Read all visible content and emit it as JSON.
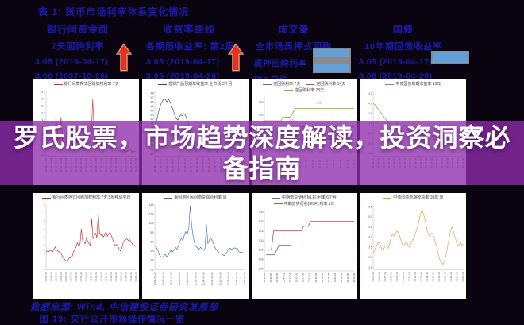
{
  "colors": {
    "navy": "#1b1bb0",
    "banner_purple": "rgba(142,45,172,0.78)",
    "bar_blue": "#64a0d8",
    "arrow_red": "#e63022",
    "arrow_edge": "#d8a078"
  },
  "banner": {
    "line1": "罗氏股票，市场趋势深度解读，投资洞察必",
    "line2": "备指南"
  },
  "header": {
    "title": "表 1: 货币市场利率体系变化情况",
    "groups": [
      {
        "name": "银行间资金面",
        "sub": "7天回购利率",
        "val1": "3.05 (2019-04-17)",
        "val2": "3.06 (2007-10-26)"
      },
      {
        "name": "收益率曲线",
        "sub": "各期限收益率: 第2周",
        "val1": "3.05 (2019-04-17)",
        "val2": "3.05 (2019-04-26)"
      },
      {
        "name": "成交量",
        "sub": "全市场质押式回购",
        "val1": "质押回购利率",
        "val2": "较7 日均."
      },
      {
        "name": "国债",
        "sub": "10年期国债收益率",
        "val1": "3.05 (2019-04-17)",
        "val2": "3.06 (2019-04-26)"
      }
    ]
  },
  "footer": {
    "line1": "数据来源: Wind, 中信建投证券研究发展部",
    "line2": "图 19:  央行公开市场操作情况一览"
  },
  "chart_data": [
    {
      "type": "line",
      "ylim": [
        1.95,
        6.55
      ],
      "y_ticks": [
        "6.5",
        "6.0",
        "5.5",
        "5.0",
        "4.5",
        "4.0",
        "3.5",
        "3.0",
        "2.5",
        "2.0"
      ],
      "x_labels": [
        "2018-01-24",
        "2018-02-24",
        "2018-03-24",
        "2018-04-24",
        "2018-05-24",
        "2018-06-24",
        "2018-07-24",
        "2018-08-24",
        "2018-09-24",
        "2018-10-24",
        "2018-11-24",
        "2018-12-24",
        "2019-01-24",
        "2019-02-24",
        "2019-03-24",
        "2019-04-24",
        "2019-05-24",
        "2019-06-24",
        "2019-07-24"
      ],
      "series": [
        {
          "name": "银行间质押式回购加权利率:7天",
          "color": "#d43030",
          "w": 0.6,
          "values": [
            3.0,
            2.9,
            3.1,
            3.0,
            2.95,
            3.05,
            4.6,
            3.2,
            2.9,
            4.7,
            3.0,
            2.85,
            2.9,
            3.6,
            3.0,
            2.9,
            2.8,
            2.85,
            2.9,
            3.4,
            2.8,
            2.75,
            2.9,
            3.1,
            2.85,
            2.8,
            2.9,
            3.0,
            6.0,
            3.1,
            2.9,
            2.8,
            2.7,
            2.75,
            2.9,
            2.6,
            2.5,
            2.55,
            2.6,
            2.5,
            2.45,
            2.5,
            2.6,
            2.4,
            2.3,
            2.35,
            2.4,
            2.3,
            2.25,
            2.3,
            2.4,
            2.35,
            2.2,
            2.3,
            2.25
          ]
        }
      ]
    },
    {
      "type": "line",
      "ylim": [
        3.35,
        4.85
      ],
      "y_ticks": [
        "4.8",
        "4.7",
        "4.6",
        "4.5",
        "4.4",
        "4.3",
        "4.2",
        "4.1",
        "4.0",
        "3.9",
        "3.8",
        "3.7",
        "3.6",
        "3.5",
        "3.4"
      ],
      "x_labels": [
        "2018-01-07",
        "2018-02-07",
        "2018-03-07",
        "2018-04-07",
        "2018-05-07",
        "2018-06-07",
        "2018-07-07",
        "2018-08-07",
        "2018-09-07",
        "2018-10-07",
        "2018-11-07",
        "2018-12-07",
        "2019-01-07",
        "2019-02-07",
        "2019-03-07",
        "2019-04-07"
      ],
      "series": [
        {
          "name": "理财产品预期年收益率:全市场:3个月",
          "color": "#27408f",
          "w": 0.6,
          "values": [
            4.05,
            4.15,
            4.3,
            4.45,
            4.55,
            4.62,
            4.68,
            4.65,
            4.6,
            4.66,
            4.6,
            4.5,
            4.42,
            4.3,
            4.22,
            4.18,
            4.25,
            4.3,
            4.28,
            4.33,
            4.3,
            4.2,
            4.1,
            3.95,
            3.75,
            3.6,
            3.5,
            3.45,
            3.55,
            3.6,
            3.52,
            3.48,
            3.55,
            3.6,
            3.58,
            3.5,
            3.45,
            3.52,
            3.58,
            3.55,
            3.48,
            3.44,
            3.5,
            3.55,
            3.5,
            3.46,
            3.52,
            3.56,
            3.5,
            3.45,
            3.42,
            3.5,
            3.53,
            3.48,
            3.44,
            3.5,
            3.46,
            3.42,
            3.45,
            3.5
          ]
        }
      ]
    },
    {
      "type": "line",
      "ylim": [
        1.45,
        1.95
      ],
      "y_ticks": [
        "1.90",
        "1.80",
        "1.70",
        "1.60",
        "1.50"
      ],
      "x_labels": [
        "2018-01",
        "2018-02",
        "2018-03",
        "2018-04",
        "2018-05",
        "2018-06",
        "2018-07",
        "2018-08",
        "2018-09",
        "2018-10",
        "2018-11",
        "2018-12",
        "2019-01",
        "2019-02"
      ],
      "series": [
        {
          "name": "逆回购利率:7天",
          "color": "#4472c4",
          "w": 0.8,
          "values": [
            1.55,
            1.55,
            1.55,
            1.55,
            1.55,
            1.55,
            1.55,
            1.55,
            1.55,
            1.55,
            1.55,
            1.55,
            1.55,
            1.55,
            1.55,
            1.58,
            1.6,
            1.6,
            1.6,
            1.6,
            1.6,
            1.6,
            1.6,
            1.6,
            1.6,
            1.6,
            1.6,
            1.6,
            1.6,
            1.6,
            1.6,
            1.6,
            1.6,
            1.6,
            1.6,
            1.6,
            1.6,
            1.6,
            1.6,
            1.6,
            1.6,
            1.6,
            1.6,
            1.6,
            1.6,
            1.6,
            1.6,
            1.6,
            1.6,
            1.6
          ]
        },
        {
          "name": "逆回购利率:14天",
          "color": "#b94a48",
          "w": 0.8,
          "values": [
            1.65,
            1.65,
            1.65,
            1.65,
            1.65,
            1.65,
            1.65,
            1.65,
            1.65,
            1.65,
            1.65,
            1.65,
            1.65,
            1.68,
            1.7,
            1.7,
            1.7,
            1.7,
            1.7,
            1.7,
            1.7,
            1.7,
            1.7,
            1.7,
            1.7,
            1.7,
            1.7,
            1.7,
            1.7,
            1.7,
            1.7,
            1.7,
            1.7,
            1.7,
            1.7,
            1.7,
            1.7,
            1.7,
            1.7,
            1.7,
            1.7,
            1.7,
            1.7,
            1.7,
            1.7,
            1.7,
            1.7,
            1.7,
            1.7,
            1.7
          ]
        },
        {
          "name": "逆回购利率:28天",
          "color": "#9aa83c",
          "w": 0.8,
          "values": [
            1.75,
            1.75,
            1.75,
            1.75,
            1.75,
            1.75,
            1.75,
            1.75,
            1.75,
            1.75,
            1.78,
            1.78,
            1.78,
            1.78,
            1.78,
            1.8,
            1.83,
            1.85,
            1.85,
            1.85,
            1.85,
            1.85,
            1.85,
            1.85,
            1.85,
            1.85,
            1.85,
            1.85,
            1.85,
            1.85,
            1.85,
            1.85,
            1.85,
            1.85,
            1.85,
            1.85,
            1.85,
            1.85,
            1.85,
            1.85,
            1.85,
            1.85,
            1.85,
            1.85,
            1.85,
            1.85,
            1.85,
            1.85,
            1.85,
            1.85
          ]
        }
      ],
      "annotations": [
        {
          "text": "1.70",
          "x": 0.28,
          "y": 1.745,
          "color": "#b94a48"
        },
        {
          "text": "1.85",
          "x": 0.58,
          "y": 1.89,
          "color": "#9aa83c"
        },
        {
          "text": "1.55",
          "x": 0.42,
          "y": 1.545,
          "color": "#4472c4"
        }
      ]
    },
    {
      "type": "line",
      "ylim": [
        2.95,
        4.25
      ],
      "y_ticks": [
        "4.2",
        "4.0",
        "3.8",
        "3.6",
        "3.4",
        "3.2",
        "3.0"
      ],
      "x_labels": [
        "2018-01",
        "2018-02",
        "2018-03",
        "2018-04",
        "2018-05",
        "2018-06",
        "2018-07",
        "2018-08",
        "2018-09",
        "2018-10",
        "2018-11",
        "2018-12",
        "2019-01",
        "2019-02",
        "2019-03",
        "2019-04",
        "2019-05",
        "2019-06"
      ],
      "series": [
        {
          "name": "中债国债到期收益率:10年",
          "color": "#cf7342",
          "w": 0.6,
          "values": [
            4.0,
            3.98,
            3.93,
            3.88,
            3.85,
            3.8,
            3.76,
            3.7,
            3.66,
            3.6,
            3.64,
            3.58,
            3.52,
            3.56,
            3.62,
            3.58,
            3.5,
            3.45,
            3.52,
            3.58,
            3.54,
            3.48,
            3.42,
            3.46,
            3.52,
            3.48,
            3.4,
            3.35,
            3.42,
            3.48,
            3.44,
            3.38,
            3.32,
            3.36,
            3.42,
            3.38,
            3.3,
            3.26,
            3.32,
            3.36,
            3.3,
            3.24,
            3.2,
            3.26,
            3.3,
            3.26,
            3.2,
            3.16,
            3.22,
            3.26,
            3.2,
            3.14,
            3.1,
            3.16,
            3.12
          ]
        }
      ]
    },
    {
      "type": "line",
      "ylim": [
        0,
        8
      ],
      "y_ticks": [
        "8",
        "7",
        "6",
        "5",
        "4",
        "3",
        "2",
        "1",
        "0"
      ],
      "x_labels": [
        "2002-05",
        "2003-05",
        "2004-05",
        "2005-05",
        "2006-05",
        "2007-05",
        "2008-05",
        "2009-05",
        "2010-05",
        "2011-05",
        "2012-05",
        "2013-05",
        "2014-05",
        "2015-05",
        "2016-05",
        "2017-05",
        "2018-05",
        "2019-05",
        "2020-05"
      ],
      "series": [
        {
          "name": "银行间质押式回购加权利率:7天:5周移动平均",
          "color": "#cc2020",
          "w": 0.6,
          "values": [
            2.2,
            2.3,
            2.2,
            2.4,
            2.3,
            2.2,
            2.5,
            2.8,
            2.4,
            2.3,
            2.2,
            2.1,
            1.8,
            1.5,
            1.3,
            1.1,
            1.0,
            1.2,
            1.5,
            1.4,
            1.6,
            2.2,
            2.4,
            2.8,
            3.3,
            2.9,
            3.1,
            5.0,
            3.6,
            3.4,
            3.2,
            4.0,
            3.4,
            3.2,
            3.0,
            6.3,
            3.8,
            4.2,
            4.5,
            3.9,
            7.0,
            4.6,
            4.2,
            4.4,
            4.0,
            4.3,
            4.7,
            4.1,
            4.4,
            4.6,
            4.2,
            3.8,
            3.3,
            2.9,
            3.1,
            3.0,
            2.5,
            2.3,
            2.6,
            3.2,
            3.6,
            3.7,
            3.8,
            3.6,
            3.7,
            3.5,
            3.2,
            2.9,
            3.0,
            2.8
          ]
        }
      ]
    },
    {
      "type": "line",
      "ylim": [
        0,
        14
      ],
      "y_ticks": [
        "14.0",
        "12.0",
        "10.0",
        "8.0",
        "6.0",
        "4.0",
        "2.0",
        "0.0"
      ],
      "x_labels": [
        "2008-06-20",
        "2009-06-20",
        "2010-06-20",
        "2011-06-20",
        "2012-06-20",
        "2013-06-20",
        "2014-06-20",
        "2015-06-20",
        "2016-06-20",
        "2017-06-20",
        "2018-06-20",
        "2019-06-20"
      ],
      "series": [
        {
          "name": "温州地区民间借贷综合利率:周",
          "color": "#3a62b8",
          "w": 0.6,
          "values": [
            5.2,
            4.8,
            4.2,
            3.2,
            2.8,
            2.6,
            2.9,
            3.3,
            2.8,
            3.1,
            3.6,
            4.4,
            3.8,
            4.2,
            4.8,
            4.4,
            5.2,
            6.0,
            6.8,
            6.2,
            7.4,
            8.2,
            7.6,
            8.8,
            13.8,
            9.5,
            7.0,
            5.6,
            5.0,
            4.6,
            4.4,
            4.8,
            4.4,
            4.2,
            4.6,
            9.8,
            5.6,
            6.4,
            6.8,
            6.2,
            5.4,
            4.6,
            4.2,
            3.8,
            3.5,
            3.6,
            3.2,
            3.0,
            3.4,
            3.8,
            4.4,
            4.6,
            4.4,
            4.5,
            4.7,
            4.5,
            4.6,
            3.9,
            3.7,
            3.8,
            3.6,
            3.5
          ]
        }
      ]
    },
    {
      "type": "line",
      "ylim": [
        2.78,
        3.42
      ],
      "y_ticks": [
        "3.40",
        "3.30",
        "3.20",
        "3.10",
        "3.00",
        "2.90",
        "2.80"
      ],
      "x_labels": [
        "2016-02",
        "2016-05",
        "2016-08",
        "2016-11",
        "2017-02",
        "2017-05",
        "2017-08",
        "2017-11",
        "2018-02",
        "2018-05",
        "2018-08",
        "2018-11",
        "2019-02",
        "2019-05",
        "2019-08"
      ],
      "series": [
        {
          "name": "中期借贷便利(MLF):利率:6个月",
          "color": "#4472c4",
          "w": 0.8,
          "span": [
            0.02,
            0.3
          ],
          "values": [
            2.95,
            2.95,
            2.95,
            3.05,
            3.05,
            3.05,
            3.05
          ]
        },
        {
          "name": "中期借贷便利(MLF):利率:1年",
          "color": "#c0504d",
          "w": 0.8,
          "values": [
            3.0,
            3.0,
            3.0,
            3.0,
            3.2,
            3.2,
            3.2,
            3.2,
            3.2,
            3.2,
            3.2,
            3.2,
            3.2,
            3.2,
            3.2,
            3.2,
            3.2,
            3.25,
            3.25,
            3.25,
            3.3,
            3.3,
            3.3,
            3.3,
            3.3,
            3.3,
            3.3,
            3.3,
            3.3,
            3.3,
            3.3,
            3.3,
            3.3,
            3.3,
            3.3,
            3.3,
            3.3,
            3.3,
            3.3,
            3.3
          ]
        }
      ]
    },
    {
      "type": "line",
      "ylim": [
        2.4,
        5.6
      ],
      "y_ticks": [
        "5.5",
        "5.0",
        "4.5",
        "4.0",
        "3.5",
        "3.0",
        "2.5"
      ],
      "x_labels": [
        "2005-03",
        "2006-03",
        "2007-03",
        "2008-03",
        "2009-03",
        "2010-03",
        "2011-03",
        "2012-03",
        "2013-03",
        "2014-03",
        "2015-03",
        "2016-03",
        "2017-03",
        "2018-03",
        "2019-03",
        "2020-03"
      ],
      "series": [
        {
          "name": "中债国债到期收益率:10年:周",
          "color": "#e8923a",
          "w": 0.6,
          "values": [
            3.2,
            3.3,
            3.5,
            3.6,
            3.75,
            3.7,
            3.55,
            3.4,
            3.35,
            3.5,
            3.6,
            3.55,
            3.45,
            3.6,
            3.9,
            4.1,
            4.15,
            4.05,
            4.2,
            4.3,
            4.25,
            4.1,
            3.9,
            3.7,
            3.55,
            3.6,
            3.75,
            3.7,
            3.6,
            3.5,
            3.65,
            3.8,
            3.9,
            4.0,
            4.2,
            4.4,
            4.6,
            4.9,
            5.15,
            5.35,
            5.2,
            5.0,
            4.7,
            4.4,
            4.2,
            4.05,
            4.15,
            4.2,
            4.1,
            3.9,
            3.7,
            3.5,
            3.2,
            2.95,
            2.8,
            2.75,
            2.65,
            2.8,
            3.0,
            3.3,
            3.7,
            4.0,
            4.3,
            4.5,
            4.35,
            4.1,
            3.9,
            3.7,
            3.55,
            3.65,
            3.75,
            3.6,
            3.65
          ]
        }
      ]
    }
  ]
}
